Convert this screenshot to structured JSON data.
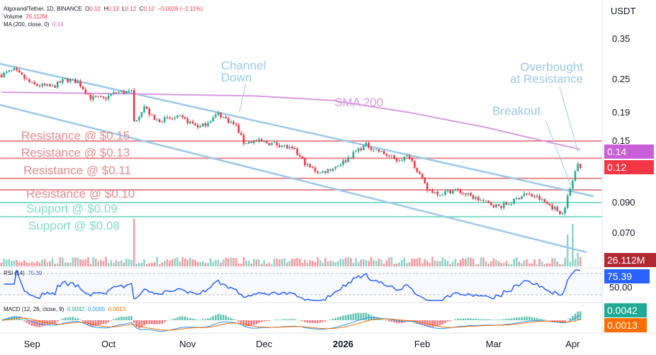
{
  "header": {
    "symbol": "Algorand/Tether, 1D, BINANCE",
    "o_label": "O",
    "o": "0.12",
    "h_label": "H",
    "h": "0.13",
    "l_label": "L",
    "l": "0.12",
    "c_label": "C",
    "c": "0.12",
    "change": "−0.0026 (−2.11%)",
    "volume_label": "Volume",
    "volume": "26.112M",
    "ma_label": "MA (200, close, 0)",
    "ma": "0.14",
    "currency": "USDT"
  },
  "rsi": {
    "label": "RSI (14)",
    "value": "75.39",
    "level": "50.00"
  },
  "macd": {
    "label": "MACD (12, 26, close, 9)",
    "hist": "0.0042",
    "macd": "0.0055",
    "signal": "0.0013"
  },
  "badges": {
    "ma": "0.14",
    "price": "0.12",
    "volume": "26.112M",
    "rsi": "75.39",
    "macd_hist": "0.0042",
    "macd_signal": "0.0013"
  },
  "annotations": {
    "channel": [
      "Channel",
      "Down"
    ],
    "sma": "SMA 200",
    "breakout": "Breakout",
    "overbought": [
      "Overbought",
      "at Resistance"
    ],
    "levels": [
      {
        "label": "Resistance @ $0.15",
        "price": 0.15,
        "kind": "resistance"
      },
      {
        "label": "Resistance @ $0.13",
        "price": 0.13,
        "kind": "resistance"
      },
      {
        "label": "Resistance @ $0.11",
        "price": 0.11,
        "kind": "resistance"
      },
      {
        "label": "Resistance @ $0.10",
        "price": 0.1,
        "kind": "resistance"
      },
      {
        "label": "Support @ $0.09",
        "price": 0.09,
        "kind": "support"
      },
      {
        "label": "Support @ $0.08",
        "price": 0.08,
        "kind": "support"
      }
    ]
  },
  "colors": {
    "up": "#22ab94",
    "down": "#f23645",
    "sma": "#d99ae2",
    "channel": "#9bc9ea",
    "resistance": "#e58a8e",
    "support": "#7fdcc4",
    "rsi": "#2962ff",
    "macd": "#2196f3",
    "signal": "#ff6d00"
  },
  "chart_data": {
    "type": "candlestick",
    "title": "Algorand/Tether, 1D, BINANCE",
    "y_scale": "log",
    "y_ticks": [
      "0.35",
      "0.25",
      "0.19",
      "0.15",
      "0.090",
      "0.070"
    ],
    "x_ticks": [
      "Sep",
      "Oct",
      "Nov",
      "Dec",
      "2026",
      "Feb",
      "Mar",
      "Apr"
    ],
    "x_tick_days": [
      12,
      42,
      73,
      103,
      134,
      165,
      193,
      224
    ],
    "close_keypoints_day_price": [
      [
        0,
        0.26
      ],
      [
        5,
        0.27
      ],
      [
        12,
        0.24
      ],
      [
        20,
        0.235
      ],
      [
        25,
        0.25
      ],
      [
        30,
        0.245
      ],
      [
        35,
        0.215
      ],
      [
        40,
        0.213
      ],
      [
        45,
        0.225
      ],
      [
        51,
        0.225
      ],
      [
        52,
        0.175
      ],
      [
        56,
        0.2
      ],
      [
        60,
        0.178
      ],
      [
        70,
        0.182
      ],
      [
        78,
        0.168
      ],
      [
        85,
        0.188
      ],
      [
        92,
        0.17
      ],
      [
        95,
        0.148
      ],
      [
        100,
        0.15
      ],
      [
        110,
        0.145
      ],
      [
        115,
        0.138
      ],
      [
        120,
        0.122
      ],
      [
        125,
        0.115
      ],
      [
        130,
        0.12
      ],
      [
        135,
        0.128
      ],
      [
        140,
        0.14
      ],
      [
        143,
        0.145
      ],
      [
        150,
        0.135
      ],
      [
        155,
        0.128
      ],
      [
        160,
        0.132
      ],
      [
        163,
        0.118
      ],
      [
        167,
        0.1
      ],
      [
        172,
        0.097
      ],
      [
        178,
        0.1
      ],
      [
        185,
        0.094
      ],
      [
        190,
        0.09
      ],
      [
        195,
        0.087
      ],
      [
        200,
        0.09
      ],
      [
        205,
        0.097
      ],
      [
        210,
        0.094
      ],
      [
        215,
        0.088
      ],
      [
        220,
        0.082
      ],
      [
        222,
        0.094
      ],
      [
        224,
        0.108
      ],
      [
        226,
        0.125
      ],
      [
        227,
        0.12
      ]
    ],
    "sma200_keypoints_day_price": [
      [
        0,
        0.225
      ],
      [
        50,
        0.222
      ],
      [
        100,
        0.218
      ],
      [
        130,
        0.21
      ],
      [
        160,
        0.19
      ],
      [
        190,
        0.168
      ],
      [
        210,
        0.152
      ],
      [
        227,
        0.14
      ]
    ],
    "volume_spikes_day_millions": [
      [
        52,
        90
      ],
      [
        222,
        60
      ],
      [
        224,
        80
      ],
      [
        226,
        26.112
      ]
    ]
  }
}
